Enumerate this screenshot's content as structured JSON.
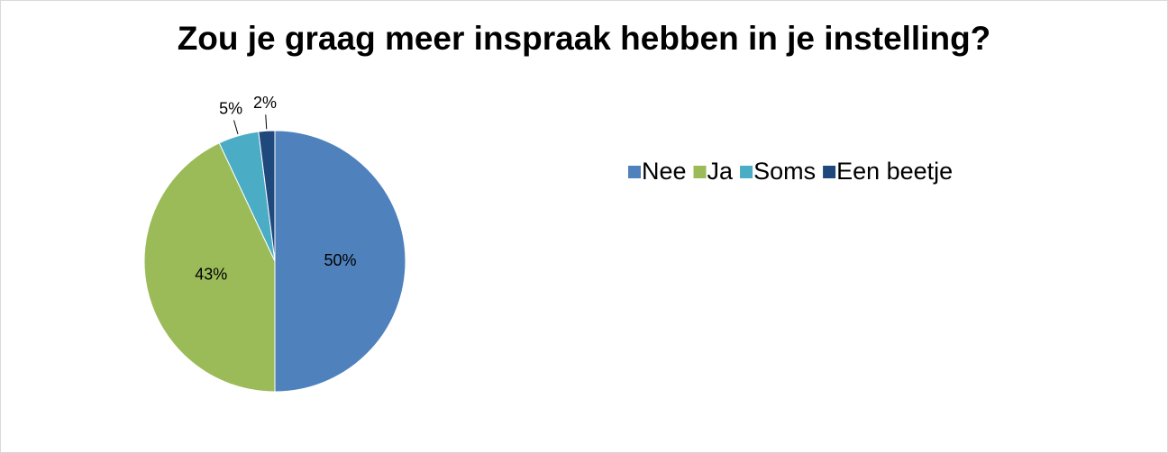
{
  "chart_data": {
    "type": "pie",
    "title": "Zou je graag meer inspraak hebben in je instelling?",
    "categories": [
      "Nee",
      "Ja",
      "Soms",
      "Een beetje"
    ],
    "values": [
      50,
      43,
      5,
      2
    ],
    "value_labels": [
      "50%",
      "43%",
      "5%",
      "2%"
    ],
    "colors": [
      "#4f81bd",
      "#9bbb59",
      "#4bacc6",
      "#1f497d"
    ],
    "legend": "right"
  }
}
